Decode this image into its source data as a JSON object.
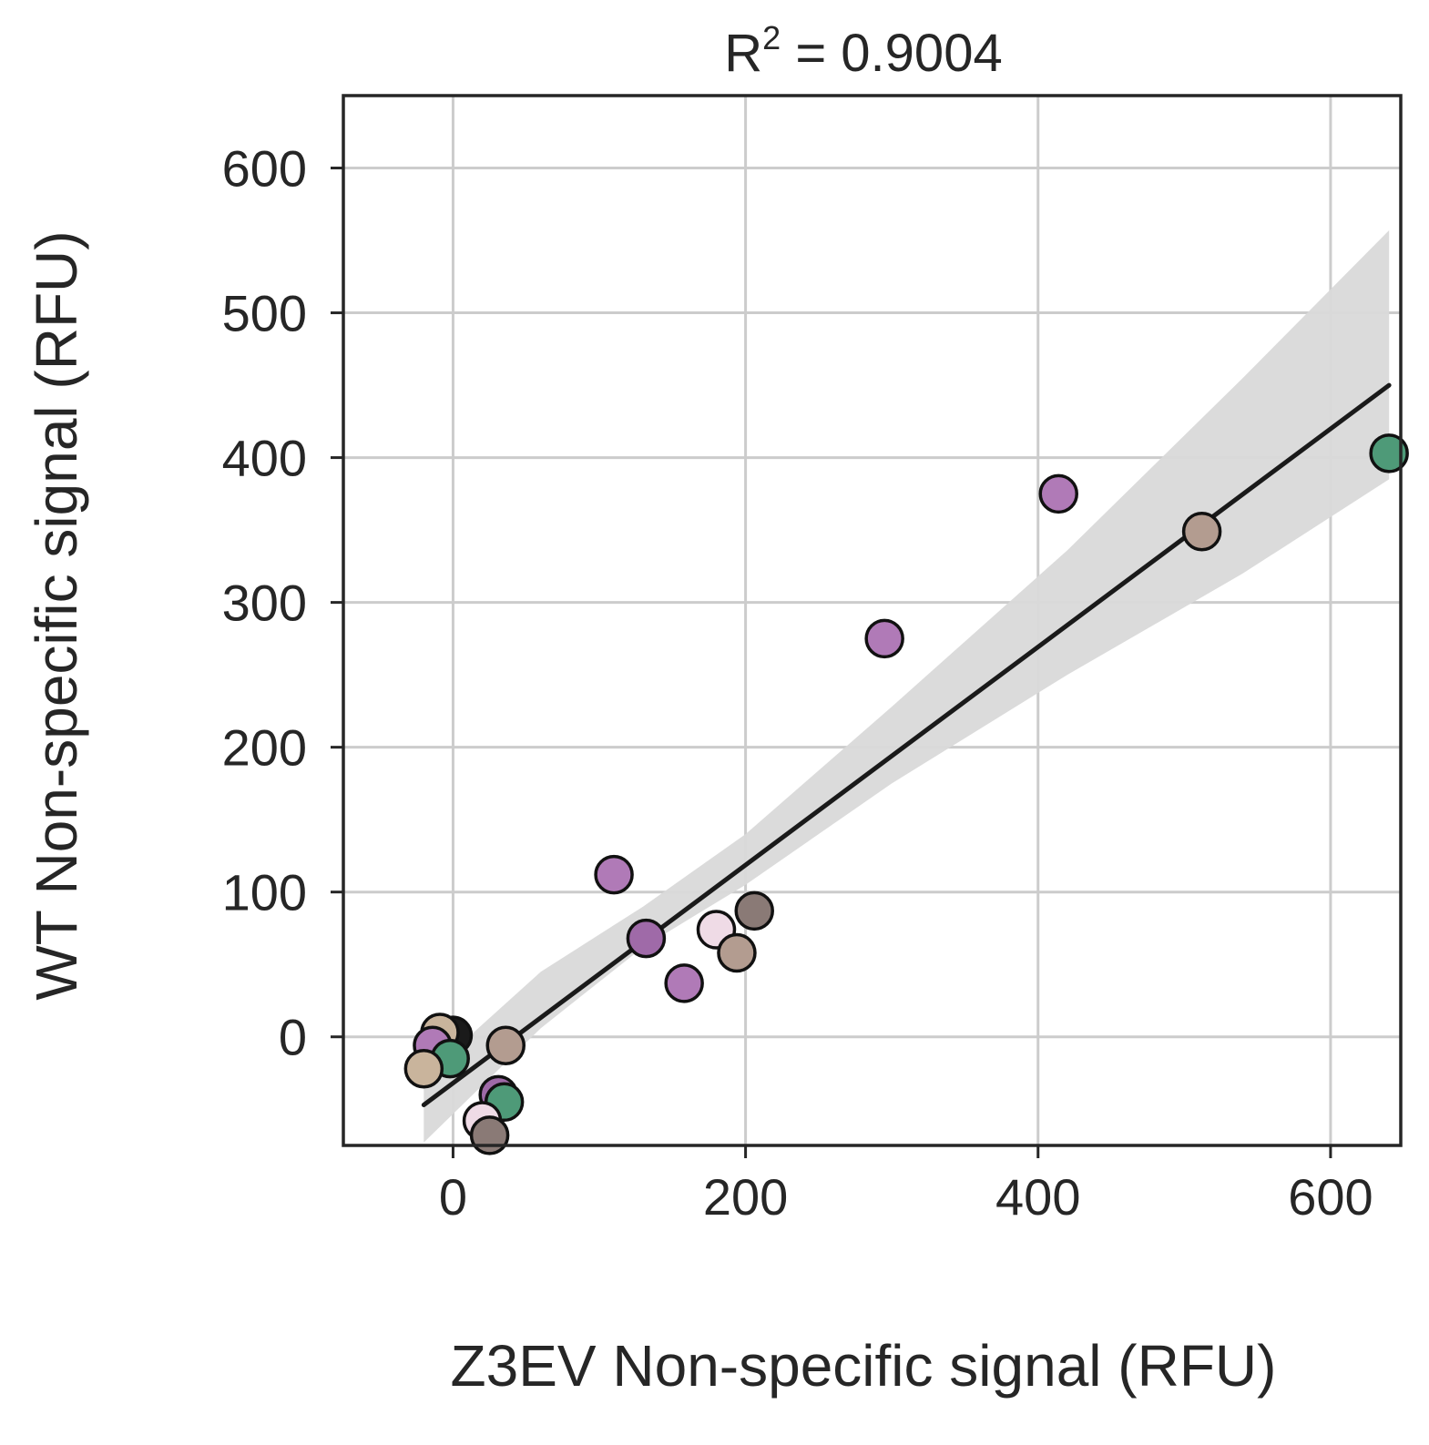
{
  "chart_data": {
    "type": "scatter",
    "title": "R² = 0.9004",
    "title_parts": {
      "base": "R",
      "superscript": "2",
      "rest": " = 0.9004"
    },
    "xlabel": "Z3EV Non-specific signal (RFU)",
    "ylabel": "WT Non-specific signal (RFU)",
    "xlim": [
      -75,
      648
    ],
    "ylim": [
      -75,
      650
    ],
    "xticks": [
      0,
      200,
      400,
      600
    ],
    "yticks": [
      0,
      100,
      200,
      300,
      400,
      500,
      600
    ],
    "grid": true,
    "points": [
      {
        "x": 0,
        "y": 1,
        "color": "#1a1a1a"
      },
      {
        "x": -9,
        "y": 3,
        "color": "#c9b49c"
      },
      {
        "x": -14,
        "y": -6,
        "color": "#b07ab7"
      },
      {
        "x": -2,
        "y": -15,
        "color": "#4e9a78"
      },
      {
        "x": -20,
        "y": -22,
        "color": "#c9b49c"
      },
      {
        "x": 36,
        "y": -6,
        "color": "#b39c90"
      },
      {
        "x": 31,
        "y": -40,
        "color": "#9f6aa8"
      },
      {
        "x": 35,
        "y": -45,
        "color": "#4e9a78"
      },
      {
        "x": 20,
        "y": -58,
        "color": "#efdbe6"
      },
      {
        "x": 25,
        "y": -68,
        "color": "#8a7a76"
      },
      {
        "x": 110,
        "y": 112,
        "color": "#b07ab7"
      },
      {
        "x": 132,
        "y": 68,
        "color": "#9f6aa8"
      },
      {
        "x": 158,
        "y": 37,
        "color": "#b07ab7"
      },
      {
        "x": 180,
        "y": 74,
        "color": "#efdbe6"
      },
      {
        "x": 194,
        "y": 58,
        "color": "#b39c90"
      },
      {
        "x": 206,
        "y": 87,
        "color": "#8a7a76"
      },
      {
        "x": 295,
        "y": 275,
        "color": "#b07ab7"
      },
      {
        "x": 414,
        "y": 375,
        "color": "#b07ab7"
      },
      {
        "x": 512,
        "y": 349,
        "color": "#b39c90"
      },
      {
        "x": 640,
        "y": 403,
        "color": "#4e9a78"
      }
    ],
    "regression_line": {
      "x": [
        -20,
        640
      ],
      "y": [
        -47,
        450
      ],
      "color": "#1a1a1a"
    },
    "confidence_band": {
      "color": "#d9d9d9",
      "x": [
        -20,
        60,
        130,
        200,
        300,
        420,
        540,
        640
      ],
      "upper": [
        -28,
        45,
        90,
        140,
        228,
        336,
        455,
        557
      ],
      "lower": [
        -73,
        6,
        62,
        105,
        175,
        250,
        320,
        385
      ]
    }
  }
}
